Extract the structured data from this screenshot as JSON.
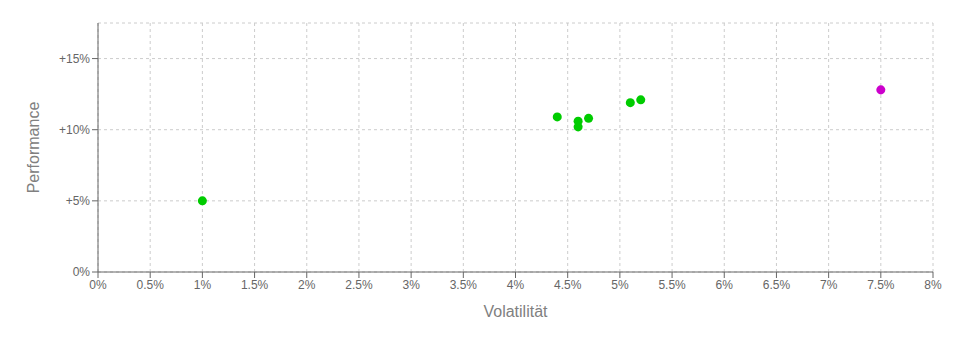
{
  "chart_data": {
    "type": "scatter",
    "xlabel": "Volatilität",
    "ylabel": "Performance",
    "xlim": [
      0.0,
      0.08
    ],
    "ylim": [
      0.0,
      0.175
    ],
    "xticks": [
      {
        "value": 0,
        "label": "0%"
      },
      {
        "value": 0.005,
        "label": "0.5%"
      },
      {
        "value": 0.01,
        "label": "1%"
      },
      {
        "value": 0.015,
        "label": "1.5%"
      },
      {
        "value": 0.02,
        "label": "2%"
      },
      {
        "value": 0.025,
        "label": "2.5%"
      },
      {
        "value": 0.03,
        "label": "3%"
      },
      {
        "value": 0.035,
        "label": "3.5%"
      },
      {
        "value": 0.04,
        "label": "4%"
      },
      {
        "value": 0.045,
        "label": "4.5%"
      },
      {
        "value": 0.05,
        "label": "5%"
      },
      {
        "value": 0.055,
        "label": "5.5%"
      },
      {
        "value": 0.06,
        "label": "6%"
      },
      {
        "value": 0.065,
        "label": "6.5%"
      },
      {
        "value": 0.07,
        "label": "7%"
      },
      {
        "value": 0.075,
        "label": "7.5%"
      },
      {
        "value": 0.08,
        "label": "8%"
      }
    ],
    "yticks": [
      {
        "value": 0.0,
        "label": "0%"
      },
      {
        "value": 0.05,
        "label": "+5%"
      },
      {
        "value": 0.1,
        "label": "+10%"
      },
      {
        "value": 0.15,
        "label": "+15%"
      }
    ],
    "grid": true,
    "series": [
      {
        "color": "#00cc00",
        "x": [
          0.01,
          0.044,
          0.046,
          0.046,
          0.047,
          0.051,
          0.052
        ],
        "values": [
          0.05,
          0.109,
          0.106,
          0.102,
          0.108,
          0.119,
          0.121
        ]
      },
      {
        "color": "#cc00cc",
        "x": [
          0.075
        ],
        "values": [
          0.128
        ]
      }
    ]
  }
}
